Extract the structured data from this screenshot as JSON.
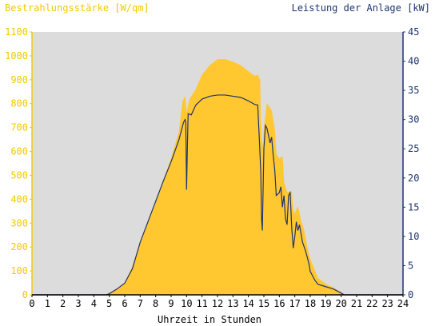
{
  "chart_data": {
    "type": "area",
    "ylabel_left": "Bestrahlungsstärke [W/qm]",
    "ylabel_right": "Leistung der Anlage [kW]",
    "xlabel": "Uhrzeit in Stunden",
    "xlim": [
      0,
      24
    ],
    "ylim_left": [
      0,
      1100
    ],
    "ylim_right": [
      0,
      45
    ],
    "x_ticks": [
      "0",
      "1",
      "2",
      "3",
      "4",
      "5",
      "6",
      "7",
      "8",
      "9",
      "10",
      "11",
      "12",
      "13",
      "14",
      "15",
      "16",
      "17",
      "18",
      "19",
      "20",
      "21",
      "22",
      "23",
      "24"
    ],
    "y_ticks_left": [
      "0",
      "100",
      "200",
      "300",
      "400",
      "500",
      "600",
      "700",
      "800",
      "900",
      "1000",
      "1100"
    ],
    "y_ticks_right": [
      "0",
      "5",
      "10",
      "15",
      "20",
      "25",
      "30",
      "35",
      "40",
      "45"
    ],
    "grid": false,
    "colors": {
      "irradiance": "#ffc830",
      "power": "#1f3470",
      "plot_bg": "#dcdcdc",
      "left_axis": "#f5c800",
      "right_axis": "#1f3470"
    },
    "series": [
      {
        "name": "Bestrahlungsstärke [W/qm]",
        "axis": "left",
        "points": [
          [
            0,
            0
          ],
          [
            4.8,
            0
          ],
          [
            5.0,
            5
          ],
          [
            5.5,
            25
          ],
          [
            6.0,
            50
          ],
          [
            6.5,
            120
          ],
          [
            7.0,
            220
          ],
          [
            7.5,
            300
          ],
          [
            8.0,
            390
          ],
          [
            8.5,
            480
          ],
          [
            9.0,
            570
          ],
          [
            9.5,
            680
          ],
          [
            9.75,
            810
          ],
          [
            9.9,
            830
          ],
          [
            10.0,
            760
          ],
          [
            10.2,
            820
          ],
          [
            10.6,
            860
          ],
          [
            11.0,
            920
          ],
          [
            11.5,
            960
          ],
          [
            12.0,
            985
          ],
          [
            12.5,
            985
          ],
          [
            13.0,
            975
          ],
          [
            13.5,
            960
          ],
          [
            14.0,
            935
          ],
          [
            14.4,
            915
          ],
          [
            14.6,
            920
          ],
          [
            14.75,
            900
          ],
          [
            14.8,
            720
          ],
          [
            14.9,
            600
          ],
          [
            15.0,
            690
          ],
          [
            15.2,
            800
          ],
          [
            15.3,
            790
          ],
          [
            15.5,
            770
          ],
          [
            15.7,
            690
          ],
          [
            15.8,
            590
          ],
          [
            16.0,
            570
          ],
          [
            16.2,
            580
          ],
          [
            16.3,
            470
          ],
          [
            16.5,
            430
          ],
          [
            16.8,
            430
          ],
          [
            16.9,
            350
          ],
          [
            17.0,
            340
          ],
          [
            17.2,
            370
          ],
          [
            17.4,
            310
          ],
          [
            17.6,
            270
          ],
          [
            17.8,
            200
          ],
          [
            18.0,
            150
          ],
          [
            18.3,
            100
          ],
          [
            18.5,
            70
          ],
          [
            19.0,
            45
          ],
          [
            19.5,
            30
          ],
          [
            20.0,
            10
          ],
          [
            20.2,
            0
          ],
          [
            24,
            0
          ]
        ]
      },
      {
        "name": "Leistung der Anlage [kW]",
        "axis": "right",
        "points": [
          [
            0,
            0
          ],
          [
            4.8,
            0
          ],
          [
            5.0,
            0.2
          ],
          [
            5.5,
            1
          ],
          [
            6.0,
            2
          ],
          [
            6.5,
            4.5
          ],
          [
            7.0,
            9
          ],
          [
            7.5,
            12.5
          ],
          [
            8.0,
            16
          ],
          [
            8.5,
            19.5
          ],
          [
            9.0,
            22.8
          ],
          [
            9.5,
            26.5
          ],
          [
            9.8,
            29.5
          ],
          [
            9.9,
            30
          ],
          [
            9.95,
            29.5
          ],
          [
            10.0,
            18
          ],
          [
            10.05,
            25
          ],
          [
            10.1,
            31
          ],
          [
            10.3,
            30.8
          ],
          [
            10.6,
            32.5
          ],
          [
            11.0,
            33.5
          ],
          [
            11.5,
            34
          ],
          [
            12.0,
            34.2
          ],
          [
            12.5,
            34.2
          ],
          [
            13.0,
            34
          ],
          [
            13.5,
            33.8
          ],
          [
            14.0,
            33.2
          ],
          [
            14.4,
            32.6
          ],
          [
            14.6,
            32.5
          ],
          [
            14.7,
            27
          ],
          [
            14.8,
            21
          ],
          [
            14.85,
            13
          ],
          [
            14.9,
            11
          ],
          [
            14.95,
            18
          ],
          [
            15.0,
            25
          ],
          [
            15.1,
            29
          ],
          [
            15.2,
            28.5
          ],
          [
            15.4,
            26
          ],
          [
            15.5,
            27
          ],
          [
            15.6,
            24
          ],
          [
            15.7,
            21.5
          ],
          [
            15.8,
            17
          ],
          [
            16.0,
            17.5
          ],
          [
            16.1,
            18.5
          ],
          [
            16.2,
            15
          ],
          [
            16.3,
            17
          ],
          [
            16.4,
            13
          ],
          [
            16.5,
            12
          ],
          [
            16.6,
            17
          ],
          [
            16.7,
            17.5
          ],
          [
            16.8,
            11.5
          ],
          [
            16.9,
            8
          ],
          [
            17.0,
            10
          ],
          [
            17.1,
            12.5
          ],
          [
            17.2,
            11
          ],
          [
            17.3,
            12
          ],
          [
            17.5,
            9
          ],
          [
            17.7,
            7.5
          ],
          [
            17.9,
            5.5
          ],
          [
            18.0,
            4
          ],
          [
            18.3,
            2.5
          ],
          [
            18.5,
            1.8
          ],
          [
            19.0,
            1.4
          ],
          [
            19.5,
            1
          ],
          [
            20.0,
            0.3
          ],
          [
            20.2,
            0
          ],
          [
            24,
            0
          ]
        ]
      }
    ]
  }
}
